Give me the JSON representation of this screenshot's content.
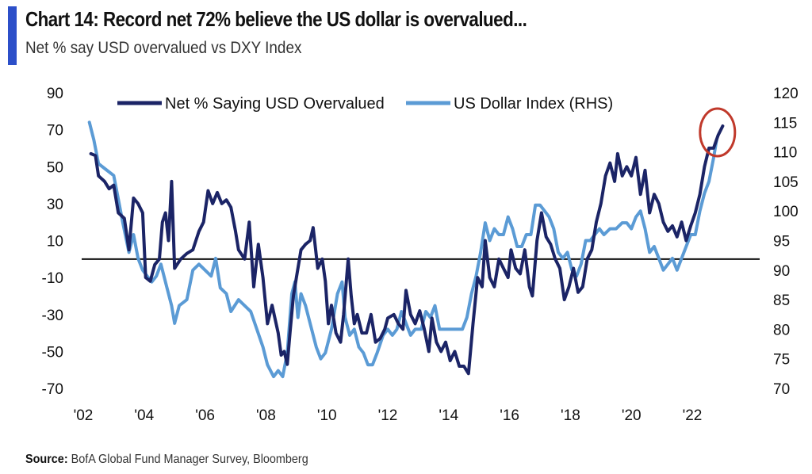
{
  "header": {
    "title": "Chart 14: Record net 72% believe the US dollar is overvalued...",
    "subtitle": "Net % say USD overvalued vs DXY Index"
  },
  "footer": {
    "source_label": "Source:",
    "source_text": "BofA Global Fund Manager Survey, Bloomberg"
  },
  "colors": {
    "accent": "#2c4fc9",
    "net_series": "#1b2466",
    "dxy_series": "#5b9bd5",
    "highlight_circle": "#c0392b"
  },
  "chart_data": {
    "type": "line",
    "title": "Chart 14: Record net 72% believe the US dollar is overvalued...",
    "subtitle": "Net % say USD overvalued vs DXY Index",
    "legend_position": "top",
    "grid": false,
    "x_ticks": [
      "'02",
      "'04",
      "'06",
      "'08",
      "'10",
      "'12",
      "'14",
      "'16",
      "'18",
      "'20",
      "'22"
    ],
    "y_left": {
      "ticks": [
        90,
        70,
        50,
        30,
        10,
        -10,
        -30,
        -50,
        -70
      ],
      "range": [
        -70,
        90
      ]
    },
    "y_right": {
      "ticks": [
        120,
        115,
        110,
        105,
        100,
        95,
        90,
        85,
        80,
        75,
        70
      ],
      "range": [
        70,
        120
      ]
    },
    "zero_line": 0,
    "annotation": {
      "type": "circle",
      "x": 2022.75,
      "y_left": 72
    },
    "series": [
      {
        "name": "Net % Saying USD Overvalued",
        "axis": "left",
        "points": [
          [
            2002.25,
            57
          ],
          [
            2002.4,
            56
          ],
          [
            2002.5,
            45
          ],
          [
            2002.7,
            42
          ],
          [
            2002.85,
            38
          ],
          [
            2003.0,
            40
          ],
          [
            2003.15,
            25
          ],
          [
            2003.35,
            22
          ],
          [
            2003.5,
            5
          ],
          [
            2003.65,
            33
          ],
          [
            2003.8,
            30
          ],
          [
            2003.95,
            25
          ],
          [
            2004.05,
            -10
          ],
          [
            2004.2,
            -12
          ],
          [
            2004.35,
            -3
          ],
          [
            2004.5,
            0
          ],
          [
            2004.6,
            20
          ],
          [
            2004.7,
            25
          ],
          [
            2004.8,
            10
          ],
          [
            2004.9,
            42
          ],
          [
            2005.0,
            -5
          ],
          [
            2005.2,
            0
          ],
          [
            2005.4,
            3
          ],
          [
            2005.6,
            5
          ],
          [
            2005.8,
            15
          ],
          [
            2005.95,
            20
          ],
          [
            2006.1,
            37
          ],
          [
            2006.25,
            30
          ],
          [
            2006.4,
            36
          ],
          [
            2006.55,
            30
          ],
          [
            2006.7,
            32
          ],
          [
            2006.85,
            28
          ],
          [
            2007.0,
            15
          ],
          [
            2007.1,
            5
          ],
          [
            2007.3,
            0
          ],
          [
            2007.45,
            20
          ],
          [
            2007.6,
            -15
          ],
          [
            2007.75,
            8
          ],
          [
            2007.9,
            -10
          ],
          [
            2008.05,
            -35
          ],
          [
            2008.2,
            -25
          ],
          [
            2008.4,
            -40
          ],
          [
            2008.5,
            -52
          ],
          [
            2008.6,
            -50
          ],
          [
            2008.7,
            -57
          ],
          [
            2008.8,
            -38
          ],
          [
            2008.9,
            -20
          ],
          [
            2009.0,
            -10
          ],
          [
            2009.15,
            5
          ],
          [
            2009.3,
            8
          ],
          [
            2009.45,
            10
          ],
          [
            2009.55,
            17
          ],
          [
            2009.7,
            -5
          ],
          [
            2009.85,
            0
          ],
          [
            2009.95,
            -12
          ],
          [
            2010.05,
            -35
          ],
          [
            2010.15,
            -25
          ],
          [
            2010.3,
            -40
          ],
          [
            2010.45,
            -45
          ],
          [
            2010.55,
            -30
          ],
          [
            2010.7,
            0
          ],
          [
            2010.8,
            -20
          ],
          [
            2010.9,
            -35
          ],
          [
            2011.0,
            -30
          ],
          [
            2011.15,
            -40
          ],
          [
            2011.3,
            -40
          ],
          [
            2011.45,
            -30
          ],
          [
            2011.6,
            -45
          ],
          [
            2011.75,
            -43
          ],
          [
            2011.9,
            -38
          ],
          [
            2012.0,
            -32
          ],
          [
            2012.2,
            -30
          ],
          [
            2012.35,
            -35
          ],
          [
            2012.5,
            -38
          ],
          [
            2012.6,
            -17
          ],
          [
            2012.75,
            -30
          ],
          [
            2012.9,
            -35
          ],
          [
            2013.05,
            -28
          ],
          [
            2013.2,
            -38
          ],
          [
            2013.35,
            -50
          ],
          [
            2013.45,
            -32
          ],
          [
            2013.6,
            -45
          ],
          [
            2013.75,
            -50
          ],
          [
            2013.9,
            -45
          ],
          [
            2014.05,
            -55
          ],
          [
            2014.2,
            -50
          ],
          [
            2014.35,
            -58
          ],
          [
            2014.5,
            -58
          ],
          [
            2014.65,
            -62
          ],
          [
            2014.8,
            -35
          ],
          [
            2014.95,
            -10
          ],
          [
            2015.1,
            -15
          ],
          [
            2015.2,
            10
          ],
          [
            2015.35,
            -10
          ],
          [
            2015.5,
            -15
          ],
          [
            2015.65,
            0
          ],
          [
            2015.8,
            -5
          ],
          [
            2015.95,
            -10
          ],
          [
            2016.05,
            5
          ],
          [
            2016.2,
            -5
          ],
          [
            2016.35,
            -8
          ],
          [
            2016.5,
            5
          ],
          [
            2016.65,
            -15
          ],
          [
            2016.75,
            -20
          ],
          [
            2016.9,
            10
          ],
          [
            2017.05,
            25
          ],
          [
            2017.2,
            12
          ],
          [
            2017.35,
            8
          ],
          [
            2017.5,
            0
          ],
          [
            2017.65,
            -5
          ],
          [
            2017.8,
            -22
          ],
          [
            2017.95,
            -15
          ],
          [
            2018.1,
            -5
          ],
          [
            2018.25,
            -18
          ],
          [
            2018.4,
            -15
          ],
          [
            2018.55,
            0
          ],
          [
            2018.7,
            5
          ],
          [
            2018.85,
            20
          ],
          [
            2019.0,
            30
          ],
          [
            2019.15,
            45
          ],
          [
            2019.3,
            52
          ],
          [
            2019.45,
            42
          ],
          [
            2019.55,
            57
          ],
          [
            2019.7,
            45
          ],
          [
            2019.85,
            50
          ],
          [
            2020.0,
            45
          ],
          [
            2020.15,
            55
          ],
          [
            2020.3,
            35
          ],
          [
            2020.45,
            48
          ],
          [
            2020.6,
            25
          ],
          [
            2020.75,
            35
          ],
          [
            2020.9,
            30
          ],
          [
            2021.05,
            20
          ],
          [
            2021.2,
            15
          ],
          [
            2021.35,
            18
          ],
          [
            2021.5,
            12
          ],
          [
            2021.65,
            20
          ],
          [
            2021.8,
            10
          ],
          [
            2021.95,
            18
          ],
          [
            2022.1,
            25
          ],
          [
            2022.25,
            35
          ],
          [
            2022.4,
            50
          ],
          [
            2022.55,
            60
          ],
          [
            2022.7,
            60
          ],
          [
            2022.85,
            67
          ],
          [
            2023.0,
            72
          ]
        ]
      },
      {
        "name": "US Dollar Index (RHS)",
        "axis": "right",
        "points": [
          [
            2002.2,
            115
          ],
          [
            2002.35,
            112
          ],
          [
            2002.5,
            108
          ],
          [
            2002.75,
            107
          ],
          [
            2003.0,
            106
          ],
          [
            2003.15,
            102
          ],
          [
            2003.3,
            98
          ],
          [
            2003.5,
            93
          ],
          [
            2003.65,
            96
          ],
          [
            2003.8,
            92
          ],
          [
            2003.95,
            90
          ],
          [
            2004.1,
            89
          ],
          [
            2004.25,
            88
          ],
          [
            2004.4,
            89
          ],
          [
            2004.55,
            91
          ],
          [
            2004.75,
            87
          ],
          [
            2004.9,
            84
          ],
          [
            2005.0,
            81
          ],
          [
            2005.15,
            84
          ],
          [
            2005.4,
            85
          ],
          [
            2005.6,
            90
          ],
          [
            2005.8,
            91
          ],
          [
            2006.0,
            90
          ],
          [
            2006.2,
            89
          ],
          [
            2006.35,
            92
          ],
          [
            2006.5,
            87
          ],
          [
            2006.7,
            86
          ],
          [
            2006.85,
            83
          ],
          [
            2007.1,
            85
          ],
          [
            2007.3,
            84
          ],
          [
            2007.5,
            83
          ],
          [
            2007.7,
            80
          ],
          [
            2007.9,
            77
          ],
          [
            2008.05,
            74
          ],
          [
            2008.25,
            72
          ],
          [
            2008.4,
            73
          ],
          [
            2008.55,
            72
          ],
          [
            2008.7,
            76
          ],
          [
            2008.85,
            86
          ],
          [
            2008.95,
            88
          ],
          [
            2009.05,
            82
          ],
          [
            2009.15,
            86
          ],
          [
            2009.3,
            84
          ],
          [
            2009.5,
            80
          ],
          [
            2009.65,
            77
          ],
          [
            2009.8,
            75
          ],
          [
            2009.95,
            76
          ],
          [
            2010.15,
            80
          ],
          [
            2010.35,
            86
          ],
          [
            2010.5,
            88
          ],
          [
            2010.6,
            82
          ],
          [
            2010.75,
            79
          ],
          [
            2010.9,
            80
          ],
          [
            2011.05,
            77
          ],
          [
            2011.2,
            76
          ],
          [
            2011.35,
            74
          ],
          [
            2011.5,
            74
          ],
          [
            2011.65,
            76
          ],
          [
            2011.85,
            79
          ],
          [
            2012.0,
            80
          ],
          [
            2012.15,
            79
          ],
          [
            2012.3,
            80
          ],
          [
            2012.45,
            83
          ],
          [
            2012.6,
            81
          ],
          [
            2012.75,
            79
          ],
          [
            2012.9,
            80
          ],
          [
            2013.1,
            80
          ],
          [
            2013.25,
            83
          ],
          [
            2013.4,
            82
          ],
          [
            2013.55,
            84
          ],
          [
            2013.7,
            80
          ],
          [
            2013.85,
            80
          ],
          [
            2014.0,
            80
          ],
          [
            2014.15,
            80
          ],
          [
            2014.3,
            80
          ],
          [
            2014.45,
            80
          ],
          [
            2014.6,
            82
          ],
          [
            2014.75,
            86
          ],
          [
            2014.9,
            89
          ],
          [
            2015.05,
            93
          ],
          [
            2015.2,
            98
          ],
          [
            2015.35,
            95
          ],
          [
            2015.5,
            97
          ],
          [
            2015.65,
            96
          ],
          [
            2015.8,
            96
          ],
          [
            2015.95,
            99
          ],
          [
            2016.1,
            97
          ],
          [
            2016.25,
            94
          ],
          [
            2016.4,
            94
          ],
          [
            2016.55,
            96
          ],
          [
            2016.7,
            96
          ],
          [
            2016.85,
            101
          ],
          [
            2017.0,
            101
          ],
          [
            2017.15,
            100
          ],
          [
            2017.3,
            99
          ],
          [
            2017.45,
            97
          ],
          [
            2017.6,
            93
          ],
          [
            2017.75,
            92
          ],
          [
            2017.9,
            93
          ],
          [
            2018.05,
            90
          ],
          [
            2018.2,
            89
          ],
          [
            2018.35,
            91
          ],
          [
            2018.5,
            95
          ],
          [
            2018.65,
            95
          ],
          [
            2018.8,
            96
          ],
          [
            2018.95,
            97
          ],
          [
            2019.1,
            96
          ],
          [
            2019.3,
            97
          ],
          [
            2019.5,
            97
          ],
          [
            2019.7,
            98
          ],
          [
            2019.85,
            98
          ],
          [
            2020.0,
            97
          ],
          [
            2020.15,
            99
          ],
          [
            2020.3,
            100
          ],
          [
            2020.45,
            97
          ],
          [
            2020.6,
            93
          ],
          [
            2020.75,
            94
          ],
          [
            2020.9,
            92
          ],
          [
            2021.05,
            90
          ],
          [
            2021.2,
            91
          ],
          [
            2021.35,
            92
          ],
          [
            2021.5,
            90
          ],
          [
            2021.65,
            92
          ],
          [
            2021.8,
            94
          ],
          [
            2021.95,
            96
          ],
          [
            2022.1,
            96
          ],
          [
            2022.25,
            100
          ],
          [
            2022.4,
            103
          ],
          [
            2022.55,
            105
          ],
          [
            2022.7,
            109
          ],
          [
            2022.8,
            112
          ]
        ]
      }
    ]
  }
}
